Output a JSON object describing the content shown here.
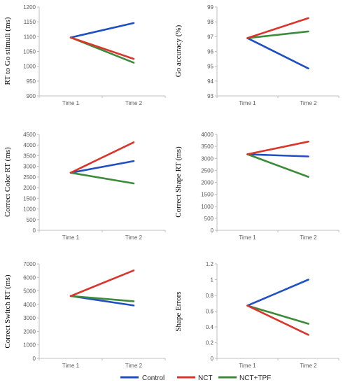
{
  "legend": [
    {
      "name": "Control",
      "color": "#1f4fc2"
    },
    {
      "name": "NCT",
      "color": "#d9352b"
    },
    {
      "name": "NCT+TPF",
      "color": "#3c8b3a"
    }
  ],
  "chart_data": [
    {
      "type": "line",
      "title": "",
      "xlabel": "",
      "ylabel": "RT to Go stimuli (ms)",
      "categories": [
        "Time 1",
        "Time 2"
      ],
      "ylim": [
        900,
        1200
      ],
      "yticks": [
        "900",
        "950",
        "1000",
        "1050",
        "1100",
        "1150",
        "1200"
      ],
      "grid": false,
      "series": [
        {
          "name": "Control",
          "values": [
            1097,
            1146
          ]
        },
        {
          "name": "NCT",
          "values": [
            1097,
            1025
          ]
        },
        {
          "name": "NCT+TPF",
          "values": [
            1097,
            1012
          ]
        }
      ]
    },
    {
      "type": "line",
      "title": "",
      "xlabel": "",
      "ylabel": "Go accuracy (%)",
      "categories": [
        "Time 1",
        "Time 2"
      ],
      "ylim": [
        93,
        99
      ],
      "yticks": [
        "93",
        "94",
        "95",
        "96",
        "97",
        "98",
        "99"
      ],
      "grid": false,
      "series": [
        {
          "name": "Control",
          "values": [
            96.9,
            94.85
          ]
        },
        {
          "name": "NCT",
          "values": [
            96.9,
            98.25
          ]
        },
        {
          "name": "NCT+TPF",
          "values": [
            96.9,
            97.35
          ]
        }
      ]
    },
    {
      "type": "line",
      "title": "",
      "xlabel": "",
      "ylabel": "Correct Color RT (ms)",
      "categories": [
        "Time 1",
        "Time 2"
      ],
      "ylim": [
        0,
        4500
      ],
      "yticks": [
        "0",
        "500",
        "1000",
        "1500",
        "2000",
        "2500",
        "3000",
        "3500",
        "4000",
        "4500"
      ],
      "grid": false,
      "series": [
        {
          "name": "Control",
          "values": [
            2700,
            3250
          ]
        },
        {
          "name": "NCT",
          "values": [
            2700,
            4130
          ]
        },
        {
          "name": "NCT+TPF",
          "values": [
            2700,
            2200
          ]
        }
      ]
    },
    {
      "type": "line",
      "title": "",
      "xlabel": "",
      "ylabel": "Correct Shape RT (ms)",
      "categories": [
        "Time 1",
        "Time 2"
      ],
      "ylim": [
        0,
        4000
      ],
      "yticks": [
        "0",
        "500",
        "1000",
        "1500",
        "2000",
        "2500",
        "3000",
        "3500",
        "4000"
      ],
      "grid": false,
      "series": [
        {
          "name": "Control",
          "values": [
            3170,
            3080
          ]
        },
        {
          "name": "NCT",
          "values": [
            3170,
            3700
          ]
        },
        {
          "name": "NCT+TPF",
          "values": [
            3170,
            2230
          ]
        }
      ]
    },
    {
      "type": "line",
      "title": "",
      "xlabel": "",
      "ylabel": "Correct Switch RT (ms)",
      "categories": [
        "Time 1",
        "Time 2"
      ],
      "ylim": [
        0,
        7000
      ],
      "yticks": [
        "0",
        "1000",
        "2000",
        "3000",
        "4000",
        "5000",
        "6000",
        "7000"
      ],
      "grid": false,
      "series": [
        {
          "name": "Control",
          "values": [
            4620,
            3920
          ]
        },
        {
          "name": "NCT",
          "values": [
            4620,
            6520
          ]
        },
        {
          "name": "NCT+TPF",
          "values": [
            4620,
            4230
          ]
        }
      ]
    },
    {
      "type": "line",
      "title": "",
      "xlabel": "",
      "ylabel": "Shape Errors",
      "categories": [
        "Time 1",
        "Time 2"
      ],
      "ylim": [
        0,
        1.2
      ],
      "yticks": [
        "0",
        "0.2",
        "0.4",
        "0.6",
        "0.8",
        "1",
        "1.2"
      ],
      "grid": false,
      "series": [
        {
          "name": "Control",
          "values": [
            0.67,
            1.0
          ]
        },
        {
          "name": "NCT",
          "values": [
            0.67,
            0.3
          ]
        },
        {
          "name": "NCT+TPF",
          "values": [
            0.67,
            0.44
          ]
        }
      ]
    }
  ]
}
